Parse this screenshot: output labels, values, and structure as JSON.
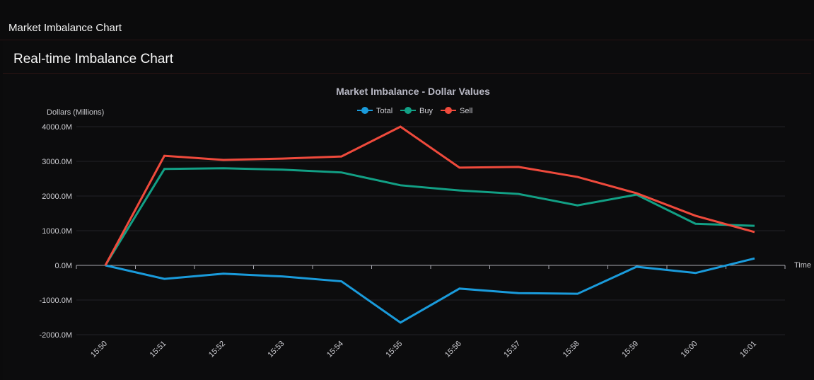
{
  "header": {
    "title": "Market Imbalance Chart"
  },
  "card": {
    "title": "Real-time Imbalance Chart"
  },
  "chart_data": {
    "type": "line",
    "title": "Market Imbalance - Dollar Values",
    "xlabel": "Time",
    "ylabel": "Dollars (Millions)",
    "ylim": [
      -2000,
      4000
    ],
    "yticks": [
      -2000,
      -1000,
      0,
      1000,
      2000,
      3000,
      4000
    ],
    "ytick_labels": [
      "-2000.0M",
      "-1000.0M",
      "0.0M",
      "1000.0M",
      "2000.0M",
      "3000.0M",
      "4000.0M"
    ],
    "grid": true,
    "legend_position": "top-center",
    "categories": [
      "15:50",
      "15:51",
      "15:52",
      "15:53",
      "15:54",
      "15:55",
      "15:56",
      "15:57",
      "15:58",
      "15:59",
      "16:00",
      "16:01"
    ],
    "series": [
      {
        "name": "Total",
        "color": "#1a9bdb",
        "values": [
          0,
          -390,
          -240,
          -320,
          -460,
          -1650,
          -670,
          -800,
          -820,
          -40,
          -220,
          200
        ]
      },
      {
        "name": "Buy",
        "color": "#12a085",
        "values": [
          0,
          2780,
          2800,
          2760,
          2680,
          2310,
          2160,
          2060,
          1730,
          2040,
          1200,
          1140
        ]
      },
      {
        "name": "Sell",
        "color": "#ef4a3c",
        "values": [
          0,
          3160,
          3040,
          3080,
          3140,
          4000,
          2820,
          2840,
          2550,
          2080,
          1430,
          960
        ]
      }
    ]
  }
}
